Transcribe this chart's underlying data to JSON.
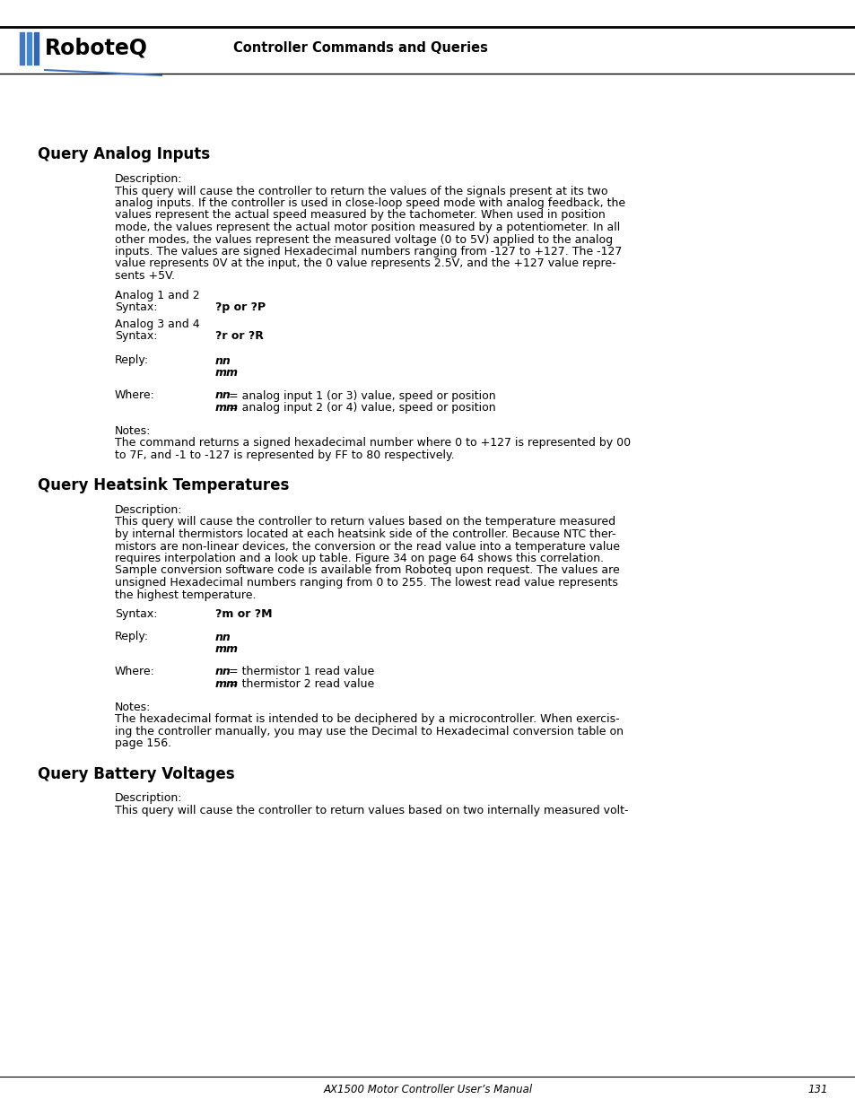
{
  "header_title": "Controller Commands and Queries",
  "footer_text": "AX1500 Motor Controller User’s Manual",
  "footer_page": "131",
  "section1_title": "Query Analog Inputs",
  "section1_description_label": "Description:",
  "section1_description": [
    "This query will cause the controller to return the values of the signals present at its two",
    "analog inputs. If the controller is used in close-loop speed mode with analog feedback, the",
    "values represent the actual speed measured by the tachometer. When used in position",
    "mode, the values represent the actual motor position measured by a potentiometer. In all",
    "other modes, the values represent the measured voltage (0 to 5V) applied to the analog",
    "inputs. The values are signed Hexadecimal numbers ranging from -127 to +127. The -127",
    "value represents 0V at the input, the 0 value represents 2.5V, and the +127 value repre-",
    "sents +5V."
  ],
  "section1_analog12_label": "Analog 1 and 2",
  "section1_syntax1_label": "Syntax:",
  "section1_syntax1_value": "?p or ?P",
  "section1_analog34_label": "Analog 3 and 4",
  "section1_syntax2_label": "Syntax:",
  "section1_syntax2_value": "?r or ?R",
  "section1_reply_label": "Reply:",
  "section1_where_label": "Where:",
  "section1_where_nn_text": " = analog input 1 (or 3) value, speed or position",
  "section1_where_mm_text": " = analog input 2 (or 4) value, speed or position",
  "section1_notes_label": "Notes:",
  "section1_notes_text": [
    "The command returns a signed hexadecimal number where 0 to +127 is represented by 00",
    "to 7F, and -1 to -127 is represented by FF to 80 respectively."
  ],
  "section2_title": "Query Heatsink Temperatures",
  "section2_description_label": "Description:",
  "section2_description": [
    "This query will cause the controller to return values based on the temperature measured",
    "by internal thermistors located at each heatsink side of the controller. Because NTC ther-",
    "mistors are non-linear devices, the conversion or the read value into a temperature value",
    "requires interpolation and a look up table. Figure 34 on page 64 shows this correlation.",
    "Sample conversion software code is available from Roboteq upon request. The values are",
    "unsigned Hexadecimal numbers ranging from 0 to 255. The lowest read value represents",
    "the highest temperature."
  ],
  "section2_syntax_label": "Syntax:",
  "section2_syntax_value": "?m or ?M",
  "section2_reply_label": "Reply:",
  "section2_where_label": "Where:",
  "section2_where_nn_text": " = thermistor 1 read value",
  "section2_where_mm_text": " = thermistor 2 read value",
  "section2_notes_label": "Notes:",
  "section2_notes_text": [
    "The hexadecimal format is intended to be deciphered by a microcontroller. When exercis-",
    "ing the controller manually, you may use the Decimal to Hexadecimal conversion table on",
    "page 156."
  ],
  "section3_title": "Query Battery Voltages",
  "section3_description_label": "Description:",
  "section3_description": "This query will cause the controller to return values based on two internally measured volt-",
  "bg_color": "#ffffff",
  "text_color": "#000000"
}
